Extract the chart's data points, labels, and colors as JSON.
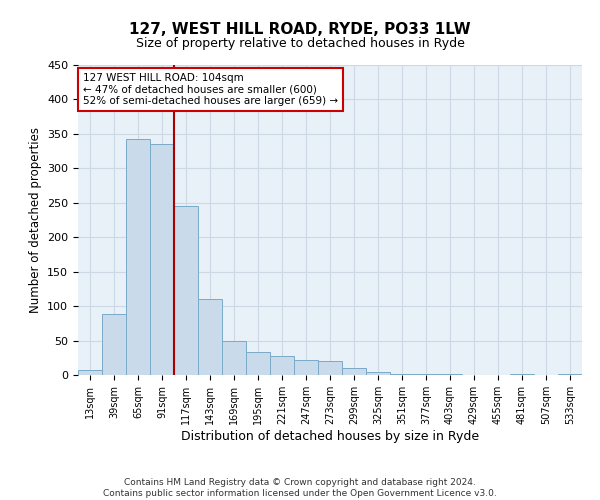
{
  "title": "127, WEST HILL ROAD, RYDE, PO33 1LW",
  "subtitle": "Size of property relative to detached houses in Ryde",
  "xlabel": "Distribution of detached houses by size in Ryde",
  "ylabel": "Number of detached properties",
  "bar_labels": [
    "13sqm",
    "39sqm",
    "65sqm",
    "91sqm",
    "117sqm",
    "143sqm",
    "169sqm",
    "195sqm",
    "221sqm",
    "247sqm",
    "273sqm",
    "299sqm",
    "325sqm",
    "351sqm",
    "377sqm",
    "403sqm",
    "429sqm",
    "455sqm",
    "481sqm",
    "507sqm",
    "533sqm"
  ],
  "bar_values": [
    7,
    88,
    342,
    336,
    245,
    110,
    50,
    33,
    27,
    22,
    21,
    10,
    5,
    1,
    1,
    1,
    0,
    0,
    1,
    0,
    1
  ],
  "bar_color": "#c9daea",
  "bar_edge_color": "#7aaac8",
  "grid_color": "#ccd9e5",
  "background_color": "#e8f0f8",
  "annotation_text": "127 WEST HILL ROAD: 104sqm\n← 47% of detached houses are smaller (600)\n52% of semi-detached houses are larger (659) →",
  "annotation_box_color": "#ffffff",
  "annotation_box_edge_color": "#cc0000",
  "vline_x_index": 3.5,
  "vline_color": "#aa0000",
  "ylim": [
    0,
    450
  ],
  "yticks": [
    0,
    50,
    100,
    150,
    200,
    250,
    300,
    350,
    400,
    450
  ],
  "footer_line1": "Contains HM Land Registry data © Crown copyright and database right 2024.",
  "footer_line2": "Contains public sector information licensed under the Open Government Licence v3.0."
}
